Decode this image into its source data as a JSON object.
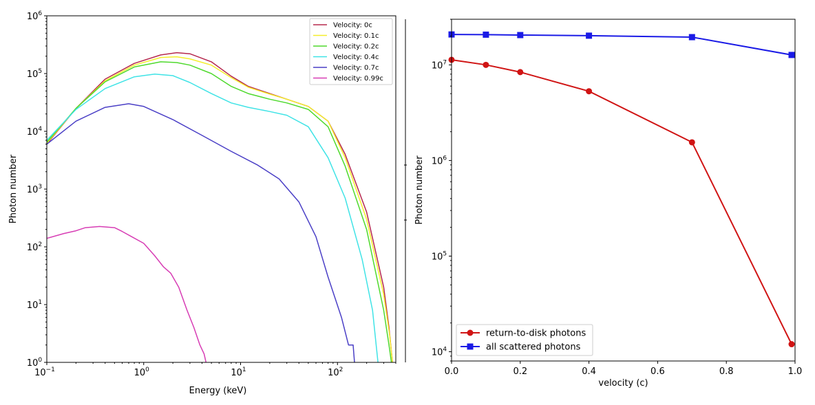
{
  "chart_data": [
    {
      "type": "line",
      "xscale": "log",
      "yscale": "log",
      "xlabel": "Energy (keV)",
      "ylabel": "Photon number",
      "xlim": [
        0.1,
        400
      ],
      "ylim": [
        1,
        1000000
      ],
      "x_ticks": [
        {
          "base": "10",
          "exp": "−1"
        },
        {
          "base": "10",
          "exp": "0"
        },
        {
          "base": "10",
          "exp": "1"
        },
        {
          "base": "10",
          "exp": "2"
        }
      ],
      "y_ticks": [
        {
          "base": "10",
          "exp": "0"
        },
        {
          "base": "10",
          "exp": "1"
        },
        {
          "base": "10",
          "exp": "2"
        },
        {
          "base": "10",
          "exp": "3"
        },
        {
          "base": "10",
          "exp": "4"
        },
        {
          "base": "10",
          "exp": "5"
        },
        {
          "base": "10",
          "exp": "6"
        }
      ],
      "legend_position": "top-right",
      "series": [
        {
          "name": "Velocity: 0c",
          "color": "#b5284d",
          "points": [
            [
              0.1,
              6000
            ],
            [
              0.2,
              25000
            ],
            [
              0.4,
              80000
            ],
            [
              0.8,
              150000
            ],
            [
              1.5,
              210000
            ],
            [
              2.2,
              230000
            ],
            [
              3,
              220000
            ],
            [
              5,
              160000
            ],
            [
              8,
              90000
            ],
            [
              12,
              60000
            ],
            [
              20,
              45000
            ],
            [
              30,
              36000
            ],
            [
              50,
              27000
            ],
            [
              80,
              15000
            ],
            [
              120,
              4000
            ],
            [
              200,
              400
            ],
            [
              300,
              20
            ],
            [
              340,
              4
            ],
            [
              370,
              1
            ]
          ]
        },
        {
          "name": "Velocity: 0.1c",
          "color": "#f4ee2a",
          "points": [
            [
              0.1,
              6200
            ],
            [
              0.2,
              25000
            ],
            [
              0.4,
              75000
            ],
            [
              0.8,
              140000
            ],
            [
              1.5,
              190000
            ],
            [
              2.2,
              195000
            ],
            [
              3,
              180000
            ],
            [
              5,
              140000
            ],
            [
              8,
              85000
            ],
            [
              12,
              58000
            ],
            [
              20,
              44000
            ],
            [
              30,
              36000
            ],
            [
              50,
              27000
            ],
            [
              80,
              15000
            ],
            [
              120,
              3500
            ],
            [
              200,
              300
            ],
            [
              300,
              15
            ],
            [
              345,
              3
            ],
            [
              370,
              1
            ]
          ]
        },
        {
          "name": "Velocity: 0.2c",
          "color": "#4ed92c",
          "points": [
            [
              0.1,
              6500
            ],
            [
              0.2,
              25000
            ],
            [
              0.4,
              72000
            ],
            [
              0.8,
              130000
            ],
            [
              1.5,
              160000
            ],
            [
              2.2,
              155000
            ],
            [
              3,
              140000
            ],
            [
              5,
              100000
            ],
            [
              8,
              60000
            ],
            [
              12,
              45000
            ],
            [
              20,
              36000
            ],
            [
              30,
              31000
            ],
            [
              50,
              24000
            ],
            [
              80,
              12000
            ],
            [
              120,
              2500
            ],
            [
              200,
              200
            ],
            [
              300,
              8
            ],
            [
              340,
              2
            ],
            [
              360,
              1
            ]
          ]
        },
        {
          "name": "Velocity: 0.4c",
          "color": "#3fe3e6",
          "points": [
            [
              0.1,
              7000
            ],
            [
              0.2,
              24000
            ],
            [
              0.4,
              55000
            ],
            [
              0.8,
              88000
            ],
            [
              1.3,
              98000
            ],
            [
              2,
              92000
            ],
            [
              3,
              70000
            ],
            [
              5,
              45000
            ],
            [
              8,
              31000
            ],
            [
              12,
              26000
            ],
            [
              20,
              22000
            ],
            [
              30,
              19000
            ],
            [
              50,
              12000
            ],
            [
              80,
              3500
            ],
            [
              120,
              700
            ],
            [
              180,
              60
            ],
            [
              230,
              8
            ],
            [
              262,
              1
            ]
          ]
        },
        {
          "name": "Velocity: 0.7c",
          "color": "#4a3fc6",
          "points": [
            [
              0.1,
              6000
            ],
            [
              0.2,
              15000
            ],
            [
              0.4,
              26000
            ],
            [
              0.7,
              30000
            ],
            [
              1,
              27000
            ],
            [
              2,
              16000
            ],
            [
              4,
              8500
            ],
            [
              8,
              4500
            ],
            [
              15,
              2600
            ],
            [
              25,
              1500
            ],
            [
              40,
              600
            ],
            [
              60,
              150
            ],
            [
              80,
              30
            ],
            [
              110,
              6
            ],
            [
              130,
              2
            ],
            [
              145,
              2
            ],
            [
              150,
              1
            ]
          ]
        },
        {
          "name": "Velocity: 0.99c",
          "color": "#d73cb4",
          "points": [
            [
              0.1,
              140
            ],
            [
              0.15,
              170
            ],
            [
              0.2,
              190
            ],
            [
              0.25,
              215
            ],
            [
              0.35,
              225
            ],
            [
              0.5,
              215
            ],
            [
              0.6,
              185
            ],
            [
              0.75,
              150
            ],
            [
              1,
              115
            ],
            [
              1.3,
              70
            ],
            [
              1.6,
              45
            ],
            [
              1.9,
              35
            ],
            [
              2.3,
              20
            ],
            [
              2.8,
              8
            ],
            [
              3.3,
              4
            ],
            [
              3.8,
              2
            ],
            [
              4.2,
              1.4
            ],
            [
              4.4,
              1
            ]
          ]
        }
      ]
    },
    {
      "type": "line",
      "yscale": "log",
      "xlabel": "velocity (c)",
      "ylabel": "Photon number",
      "xlim": [
        0,
        1
      ],
      "ylim": [
        8000,
        30000000
      ],
      "x_ticks": [
        "0.0",
        "0.2",
        "0.4",
        "0.6",
        "0.8",
        "1.0"
      ],
      "y_ticks": [
        {
          "base": "10",
          "exp": "4"
        },
        {
          "base": "10",
          "exp": "5"
        },
        {
          "base": "10",
          "exp": "6"
        },
        {
          "base": "10",
          "exp": "7"
        }
      ],
      "legend_position": "bottom-left",
      "x": [
        0,
        0.1,
        0.2,
        0.4,
        0.7,
        0.99
      ],
      "series": [
        {
          "name": "return-to-disk photons",
          "color": "#d01414",
          "marker": "circle",
          "values": [
            11300000,
            10000000,
            8400000,
            5300000,
            1550000,
            12000
          ]
        },
        {
          "name": "all scattered photons",
          "color": "#1a1ae6",
          "marker": "square",
          "values": [
            20800000,
            20700000,
            20500000,
            20200000,
            19500000,
            12700000
          ]
        }
      ]
    }
  ]
}
